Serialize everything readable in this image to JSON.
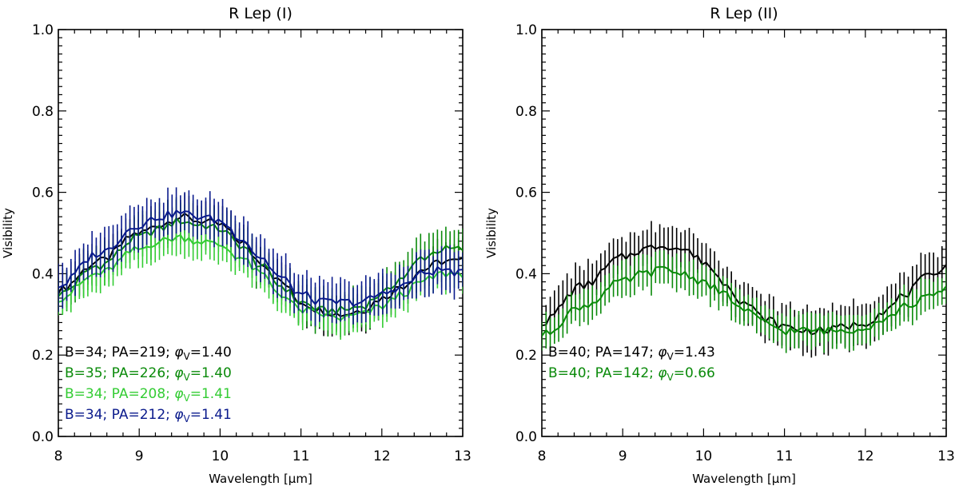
{
  "chart_data": [
    {
      "type": "line",
      "title": "R Lep (I)",
      "xlabel": "Wavelength [μm]",
      "ylabel": "Visibility",
      "xlim": [
        8,
        13
      ],
      "ylim": [
        0.0,
        1.0
      ],
      "x_ticks": [
        "8",
        "9",
        "10",
        "11",
        "12",
        "13"
      ],
      "y_ticks": [
        "0.0",
        "0.2",
        "0.4",
        "0.6",
        "0.8",
        "1.0"
      ],
      "grid": false,
      "legend_position": "bottom-left",
      "x": [
        8.0,
        8.5,
        9.0,
        9.25,
        9.5,
        9.75,
        10.0,
        10.25,
        10.5,
        10.75,
        11.0,
        11.25,
        11.5,
        11.75,
        12.0,
        12.25,
        12.5,
        12.75,
        13.0
      ],
      "series": [
        {
          "name": "B=34; PA=219; φv=1.40",
          "legend": {
            "b": "B=34;",
            "pa": "PA=219;",
            "phi": "=1.40"
          },
          "color": "#000000",
          "values": [
            0.36,
            0.43,
            0.5,
            0.52,
            0.54,
            0.53,
            0.52,
            0.48,
            0.43,
            0.38,
            0.33,
            0.31,
            0.3,
            0.31,
            0.34,
            0.37,
            0.41,
            0.43,
            0.43
          ],
          "error": 0.045
        },
        {
          "name": "B=35; PA=226; φv=1.40",
          "legend": {
            "b": "B=35;",
            "pa": "PA=226;",
            "phi": "=1.40"
          },
          "color": "#0a8a0a",
          "values": [
            0.35,
            0.42,
            0.49,
            0.51,
            0.53,
            0.52,
            0.51,
            0.47,
            0.42,
            0.37,
            0.33,
            0.31,
            0.31,
            0.32,
            0.35,
            0.39,
            0.44,
            0.46,
            0.46
          ],
          "error": 0.05
        },
        {
          "name": "B=34; PA=208; φv=1.41",
          "legend": {
            "b": "B=34;",
            "pa": "PA=208;",
            "phi": "=1.41"
          },
          "color": "#33cc33",
          "values": [
            0.34,
            0.4,
            0.46,
            0.48,
            0.49,
            0.48,
            0.47,
            0.44,
            0.4,
            0.35,
            0.31,
            0.3,
            0.29,
            0.3,
            0.32,
            0.35,
            0.38,
            0.4,
            0.4
          ],
          "error": 0.04
        },
        {
          "name": "B=34; PA=212; φv=1.41",
          "legend": {
            "b": "B=34;",
            "pa": "PA=212;",
            "phi": "=1.41"
          },
          "color": "#0a1a8c",
          "values": [
            0.37,
            0.45,
            0.52,
            0.54,
            0.55,
            0.54,
            0.53,
            0.49,
            0.44,
            0.39,
            0.35,
            0.33,
            0.33,
            0.33,
            0.35,
            0.37,
            0.4,
            0.41,
            0.4
          ],
          "error": 0.05
        }
      ]
    },
    {
      "type": "line",
      "title": "R Lep (II)",
      "xlabel": "Wavelength [μm]",
      "ylabel": "Visibility",
      "xlim": [
        8,
        13
      ],
      "ylim": [
        0.0,
        1.0
      ],
      "x_ticks": [
        "8",
        "9",
        "10",
        "11",
        "12",
        "13"
      ],
      "y_ticks": [
        "0.0",
        "0.2",
        "0.4",
        "0.6",
        "0.8",
        "1.0"
      ],
      "grid": false,
      "legend_position": "bottom-left",
      "x": [
        8.0,
        8.5,
        9.0,
        9.25,
        9.5,
        9.75,
        10.0,
        10.25,
        10.5,
        10.75,
        11.0,
        11.25,
        11.5,
        11.75,
        12.0,
        12.25,
        12.5,
        12.75,
        13.0
      ],
      "series": [
        {
          "name": "B=40; PA=147; φv=1.43",
          "legend": {
            "b": "B=40;",
            "pa": "PA=147;",
            "phi": "=1.43"
          },
          "color": "#000000",
          "values": [
            0.28,
            0.37,
            0.44,
            0.46,
            0.47,
            0.46,
            0.43,
            0.38,
            0.33,
            0.29,
            0.27,
            0.26,
            0.26,
            0.27,
            0.28,
            0.31,
            0.35,
            0.39,
            0.42
          ],
          "error": 0.05
        },
        {
          "name": "B=40; PA=142; φv=0.66",
          "legend": {
            "b": "B=40;",
            "pa": "PA=142;",
            "phi": "=0.66"
          },
          "color": "#0a8a0a",
          "values": [
            0.25,
            0.32,
            0.38,
            0.4,
            0.41,
            0.4,
            0.38,
            0.35,
            0.31,
            0.28,
            0.26,
            0.26,
            0.26,
            0.26,
            0.27,
            0.29,
            0.32,
            0.34,
            0.36
          ],
          "error": 0.04
        }
      ]
    }
  ]
}
